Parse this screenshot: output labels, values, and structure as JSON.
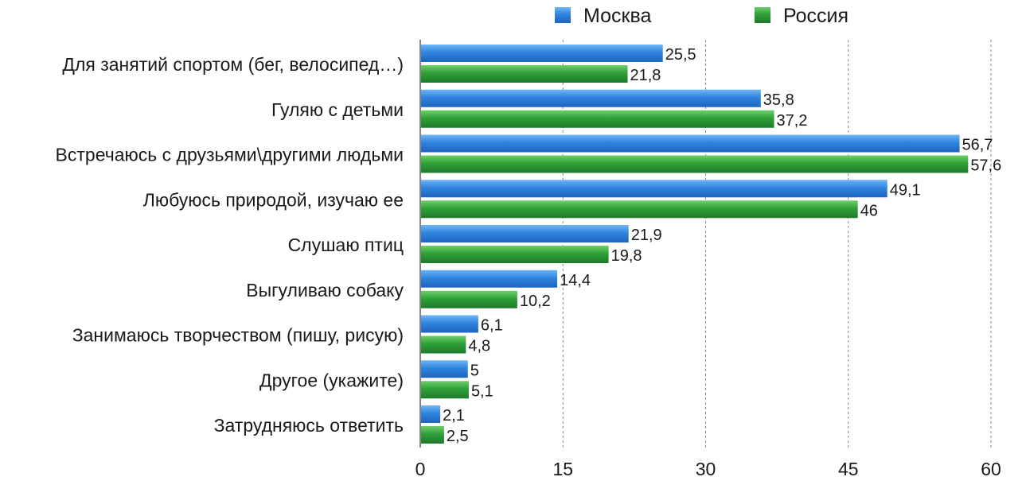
{
  "chart_data": {
    "type": "bar",
    "orientation": "horizontal",
    "categories": [
      "Для занятий спортом (бег, велосипед…)",
      "Гуляю с детьми",
      "Встречаюсь с друзьями\\другими людьми",
      "Любуюсь природой, изучаю ее",
      "Слушаю птиц",
      "Выгуливаю собаку",
      "Занимаюсь творчеством (пишу, рисую)",
      "Другое (укажите)",
      "Затрудняюсь ответить"
    ],
    "series": [
      {
        "name": "Москва",
        "color": "#2f7fd8",
        "values": [
          25.5,
          35.8,
          56.7,
          49.1,
          21.9,
          14.4,
          6.1,
          5,
          2.1
        ],
        "labels": [
          "25,5",
          "35,8",
          "56,7",
          "49,1",
          "21,9",
          "14,4",
          "6,1",
          "5",
          "2,1"
        ]
      },
      {
        "name": "Россия",
        "color": "#2f9a3a",
        "values": [
          21.8,
          37.2,
          57.6,
          46,
          19.8,
          10.2,
          4.8,
          5.1,
          2.5
        ],
        "labels": [
          "21,8",
          "37,2",
          "57,6",
          "46",
          "19,8",
          "10,2",
          "4,8",
          "5,1",
          "2,5"
        ]
      }
    ],
    "title": "",
    "xlabel": "",
    "ylabel": "",
    "xlim": [
      0,
      60
    ],
    "ticks": [
      0,
      15,
      30,
      45,
      60
    ],
    "tick_labels": [
      "0",
      "15",
      "30",
      "45",
      "60"
    ],
    "grid": "vertical dashed",
    "legend_position": "top"
  }
}
